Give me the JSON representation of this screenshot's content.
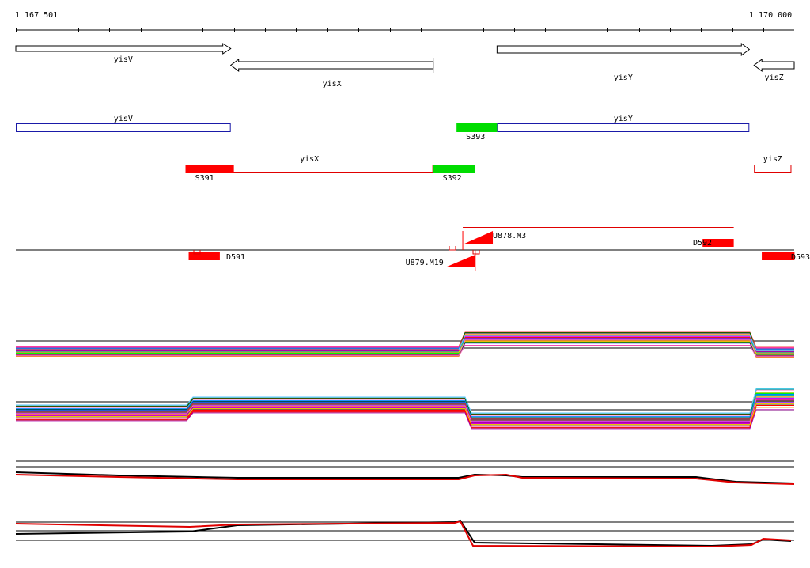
{
  "ruler": {
    "start_label": "1 167 501",
    "end_label": "1 170 000",
    "start_bp": 1167501,
    "end_bp": 1170000,
    "tick_step_bp": 100
  },
  "genes": [
    {
      "name": "yisV",
      "label": "yisV",
      "start_bp": 1167501,
      "end_bp": 1168191,
      "strand": "+"
    },
    {
      "name": "yisX",
      "label": "yisX",
      "start_bp": 1168191,
      "end_bp": 1168841,
      "strand": "-"
    },
    {
      "name": "yisY",
      "label": "yisY",
      "start_bp": 1169046,
      "end_bp": 1169856,
      "strand": "+"
    },
    {
      "name": "yisZ",
      "label": "yisZ",
      "start_bp": 1169871,
      "end_bp": 1170000,
      "strand": "-"
    }
  ],
  "transcripts": [
    {
      "name": "yisV",
      "label": "yisV",
      "start_bp": 1167501,
      "end_bp": 1168191,
      "color": "#1a1aa8",
      "strand": "+"
    },
    {
      "name": "yisY",
      "label": "yisY",
      "start_bp": 1169046,
      "end_bp": 1169856,
      "color": "#1a1aa8",
      "strand": "+"
    },
    {
      "name": "yisX",
      "label": "yisX",
      "start_bp": 1168046,
      "end_bp": 1168841,
      "color": "#e00000",
      "strand": "-"
    },
    {
      "name": "yisZ",
      "label": "yisZ",
      "start_bp": 1169871,
      "end_bp": 1169991,
      "color": "#e00000",
      "strand": "-"
    }
  ],
  "upshifts": [
    {
      "name": "S393",
      "label": "S393",
      "start_bp": 1168916,
      "end_bp": 1169046,
      "color": "#00dd00"
    },
    {
      "name": "S391",
      "label": "S391",
      "start_bp": 1168046,
      "end_bp": 1168201,
      "color": "#ff0000"
    },
    {
      "name": "S392",
      "label": "S392",
      "start_bp": 1168841,
      "end_bp": 1168976,
      "color": "#00dd00"
    }
  ],
  "segments": [
    {
      "name": "D591",
      "label": "D591",
      "start_bp": 1168056,
      "end_bp": 1168156,
      "color": "#ff0000",
      "side": "below"
    },
    {
      "name": "D592",
      "label": "D592",
      "start_bp": 1169706,
      "end_bp": 1169806,
      "color": "#ff0000",
      "side": "above"
    },
    {
      "name": "D593",
      "label": "D593",
      "start_bp": 1169896,
      "end_bp": 1170001,
      "color": "#ff0000",
      "side": "below"
    },
    {
      "name": "U878.M3",
      "label": "U878.M3",
      "start_bp": 1168936,
      "end_bp": 1169036,
      "color": "#ff0000",
      "side": "above"
    },
    {
      "name": "U879.M19",
      "label": "U879.M19",
      "start_bp": 1168876,
      "end_bp": 1168976,
      "color": "#ff0000",
      "side": "below"
    }
  ],
  "bracket_spans": [
    {
      "name": "span-above",
      "start_bp": 1168936,
      "end_bp": 1169806,
      "color": "#e00000",
      "side": "above"
    },
    {
      "name": "span-below",
      "start_bp": 1168046,
      "end_bp": 1168976,
      "color": "#e00000",
      "side": "below"
    },
    {
      "name": "span-below-right",
      "start_bp": 1169871,
      "end_bp": 1170001,
      "color": "#e00000",
      "side": "below"
    }
  ],
  "colors": {
    "axis": "#000000",
    "gene_outline": "#000000",
    "yisV_transcript": "#1a1aa8",
    "expression_red": "#e00000",
    "expression_black": "#000000"
  },
  "expression_panels": [
    {
      "name": "expression-panel-1",
      "series_count": 48
    },
    {
      "name": "expression-panel-2",
      "series_count": 48
    },
    {
      "name": "expression-panel-3",
      "series_count": 2
    },
    {
      "name": "expression-panel-4",
      "series_count": 2
    }
  ]
}
